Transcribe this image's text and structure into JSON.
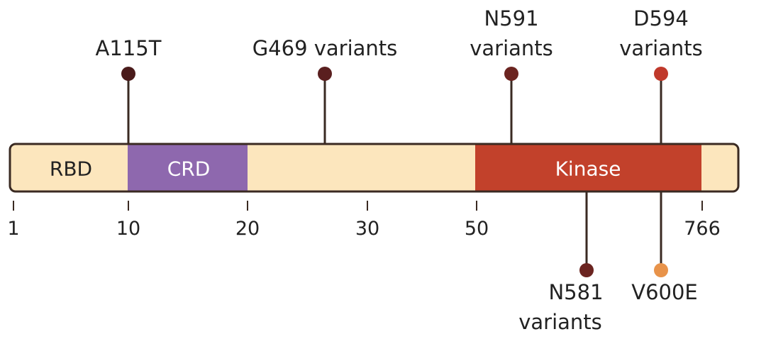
{
  "protein": {
    "bar_color": "#fce6bd",
    "outline_color": "#3a2a22"
  },
  "domains": [
    {
      "label": "RBD",
      "color": "#fce6bd",
      "text_color": "#222222"
    },
    {
      "label": "CRD",
      "color": "#8e68ae",
      "text_color": "#ffffff"
    },
    {
      "label": "",
      "color": "#fce6bd",
      "text_color": "#222222"
    },
    {
      "label": "Kinase",
      "color": "#c2412b",
      "text_color": "#ffffff"
    },
    {
      "label": "",
      "color": "#fce6bd",
      "text_color": "#222222"
    }
  ],
  "axis": {
    "ticks": [
      "1",
      "10",
      "20",
      "30",
      "50",
      "766"
    ]
  },
  "mutations_top": [
    {
      "lines": [
        "A115T"
      ],
      "color": "#4a1b1b"
    },
    {
      "lines": [
        "G469 variants"
      ],
      "color": "#5a1f1f"
    },
    {
      "lines": [
        "N591",
        "variants"
      ],
      "color": "#6b2420"
    },
    {
      "lines": [
        "D594",
        "variants"
      ],
      "color": "#c0392b"
    }
  ],
  "mutations_bottom": [
    {
      "lines": [
        "N581",
        "variants"
      ],
      "color": "#6b2420"
    },
    {
      "lines": [
        "V600E"
      ],
      "color": "#e8934a"
    }
  ],
  "stem_color": "#3a2a22"
}
